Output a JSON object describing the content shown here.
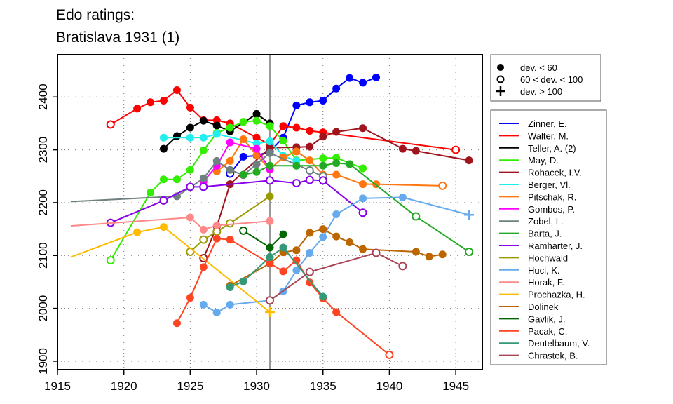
{
  "chart_data": {
    "type": "line",
    "title": [
      "Edo ratings:",
      "Bratislava 1931 (1)"
    ],
    "xlabel": "",
    "ylabel": "",
    "xlim": [
      1915,
      1947
    ],
    "ylim": [
      1884,
      2480
    ],
    "x_ticks": [
      1915,
      1920,
      1925,
      1930,
      1935,
      1940,
      1945
    ],
    "y_ticks": [
      1900,
      2000,
      2100,
      2200,
      2300,
      2400
    ],
    "grid": true,
    "reference_year": 1931,
    "marker_legend": [
      {
        "symbol": "filled",
        "label": "dev. < 60"
      },
      {
        "symbol": "open",
        "label": "60 < dev. < 100"
      },
      {
        "symbol": "plus",
        "label": "dev. > 100"
      }
    ],
    "legend_placement": "right",
    "series": [
      {
        "name": "Zinner, E.",
        "color": "#0000ff",
        "points": [
          [
            1928,
            2255,
            "o"
          ],
          [
            1929,
            2287,
            "f"
          ],
          [
            1930,
            2289,
            "f"
          ],
          [
            1931,
            2297,
            "f"
          ],
          [
            1932,
            2323,
            "f"
          ],
          [
            1933,
            2384,
            "f"
          ],
          [
            1934,
            2390,
            "f"
          ],
          [
            1935,
            2393,
            "f"
          ],
          [
            1936,
            2416,
            "f"
          ],
          [
            1937,
            2436,
            "f"
          ],
          [
            1938,
            2427,
            "f"
          ],
          [
            1939,
            2437,
            "f"
          ]
        ]
      },
      {
        "name": "Walter, M.",
        "color": "#ff0000",
        "points": [
          [
            1919,
            2348,
            "o"
          ],
          [
            1921,
            2378,
            "f"
          ],
          [
            1922,
            2390,
            "f"
          ],
          [
            1923,
            2393,
            "f"
          ],
          [
            1924,
            2413,
            "f"
          ],
          [
            1925,
            2380,
            "f"
          ],
          [
            1926,
            2356,
            "f"
          ],
          [
            1927,
            2356,
            "f"
          ],
          [
            1928,
            2350,
            "f"
          ],
          [
            1930,
            2323,
            "f"
          ],
          [
            1931,
            2310,
            "f"
          ],
          [
            1932,
            2345,
            "f"
          ],
          [
            1933,
            2342,
            "f"
          ],
          [
            1934,
            2336,
            "f"
          ],
          [
            1935,
            2333,
            "f"
          ],
          [
            1945,
            2300,
            "o"
          ]
        ]
      },
      {
        "name": "Teller, A. (2)",
        "color": "#000000",
        "points": [
          [
            1923,
            2302,
            "f"
          ],
          [
            1924,
            2326,
            "f"
          ],
          [
            1925,
            2342,
            "f"
          ],
          [
            1926,
            2355,
            "f"
          ],
          [
            1927,
            2346,
            "f"
          ],
          [
            1928,
            2335,
            "f"
          ],
          [
            1930,
            2368,
            "f"
          ],
          [
            1931,
            2350,
            "f"
          ]
        ]
      },
      {
        "name": "May, D.",
        "color": "#33ee00",
        "points": [
          [
            1919,
            2091,
            "o"
          ],
          [
            1922,
            2219,
            "f"
          ],
          [
            1923,
            2244,
            "f"
          ],
          [
            1924,
            2244,
            "f"
          ],
          [
            1925,
            2262,
            "f"
          ],
          [
            1926,
            2299,
            "f"
          ],
          [
            1927,
            2332,
            "f"
          ],
          [
            1928,
            2342,
            "f"
          ],
          [
            1929,
            2353,
            "f"
          ],
          [
            1930,
            2355,
            "f"
          ],
          [
            1931,
            2345,
            "f"
          ],
          [
            1932,
            2317,
            "f"
          ],
          [
            1933,
            2280,
            "f"
          ],
          [
            1935,
            2284,
            "f"
          ],
          [
            1936,
            2285,
            "f"
          ],
          [
            1938,
            2265,
            "f"
          ]
        ]
      },
      {
        "name": "Rohacek, I.V.",
        "color": "#a0141e",
        "points": [
          [
            1926,
            2095,
            "o"
          ],
          [
            1927,
            2155,
            "f"
          ],
          [
            1928,
            2235,
            "f"
          ],
          [
            1931,
            2304,
            "f"
          ],
          [
            1933,
            2305,
            "f"
          ],
          [
            1934,
            2306,
            "f"
          ],
          [
            1935,
            2325,
            "f"
          ],
          [
            1936,
            2334,
            "f"
          ],
          [
            1938,
            2341,
            "f"
          ],
          [
            1941,
            2302,
            "f"
          ],
          [
            1942,
            2298,
            "f"
          ],
          [
            1946,
            2280,
            "f"
          ]
        ]
      },
      {
        "name": "Berger, Vl.",
        "color": "#22eeee",
        "points": [
          [
            1923,
            2323,
            "f"
          ],
          [
            1925,
            2323,
            "f"
          ],
          [
            1926,
            2323,
            "f"
          ],
          [
            1927,
            2330,
            "f"
          ],
          [
            1930,
            2312,
            "f"
          ],
          [
            1931,
            2316,
            "f"
          ],
          [
            1932,
            2289,
            "f"
          ],
          [
            1933,
            2279,
            "f"
          ]
        ]
      },
      {
        "name": "Pitschak, R.",
        "color": "#ff7711",
        "points": [
          [
            1927,
            2259,
            "f"
          ],
          [
            1928,
            2279,
            "f"
          ],
          [
            1929,
            2320,
            "f"
          ],
          [
            1930,
            2290,
            "f"
          ],
          [
            1931,
            2263,
            "f"
          ],
          [
            1932,
            2286,
            "f"
          ],
          [
            1933,
            2297,
            "f"
          ],
          [
            1934,
            2280,
            "f"
          ],
          [
            1935,
            2253,
            "f"
          ],
          [
            1936,
            2253,
            "f"
          ],
          [
            1938,
            2235,
            "f"
          ],
          [
            1939,
            2235,
            "f"
          ],
          [
            1944,
            2232,
            "o"
          ]
        ]
      },
      {
        "name": "Gombos, P.",
        "color": "#ff00ff",
        "points": [
          [
            1926,
            2240,
            "f"
          ],
          [
            1927,
            2270,
            "f"
          ],
          [
            1928,
            2314,
            "f"
          ],
          [
            1930,
            2302,
            "f"
          ],
          [
            1931,
            2263,
            "f"
          ]
        ]
      },
      {
        "name": "Zobel, L.",
        "color": "#6e8080",
        "points": [
          [
            1916,
            2202,
            "n"
          ],
          [
            1924,
            2212,
            "f"
          ],
          [
            1926,
            2246,
            "f"
          ],
          [
            1927,
            2279,
            "f"
          ],
          [
            1928,
            2262,
            "f"
          ],
          [
            1929,
            2252,
            "f"
          ],
          [
            1930,
            2273,
            "f"
          ],
          [
            1931,
            2294,
            "f"
          ],
          [
            1934,
            2261,
            "o"
          ],
          [
            1935,
            2250,
            "o"
          ]
        ]
      },
      {
        "name": "Barta, J.",
        "color": "#22aa22",
        "points": [
          [
            1929,
            2253,
            "f"
          ],
          [
            1930,
            2258,
            "f"
          ],
          [
            1931,
            2270,
            "f"
          ],
          [
            1933,
            2270,
            "f"
          ],
          [
            1935,
            2270,
            "f"
          ],
          [
            1936,
            2275,
            "f"
          ],
          [
            1937,
            2273,
            "f"
          ],
          [
            1942,
            2174,
            "o"
          ],
          [
            1946,
            2107,
            "o"
          ]
        ]
      },
      {
        "name": "Ramharter, J.",
        "color": "#8800ee",
        "points": [
          [
            1919,
            2162,
            "o"
          ],
          [
            1923,
            2204,
            "o"
          ],
          [
            1925,
            2230,
            "o"
          ],
          [
            1926,
            2230,
            "o"
          ],
          [
            1931,
            2242,
            "o"
          ],
          [
            1933,
            2237,
            "o"
          ],
          [
            1934,
            2243,
            "o"
          ],
          [
            1935,
            2242,
            "o"
          ],
          [
            1938,
            2181,
            "o"
          ]
        ]
      },
      {
        "name": "Hochwald",
        "color": "#999900",
        "points": [
          [
            1925,
            2107,
            "o"
          ],
          [
            1926,
            2130,
            "o"
          ],
          [
            1927,
            2145,
            "o"
          ],
          [
            1928,
            2161,
            "o"
          ],
          [
            1931,
            2212,
            "f"
          ]
        ]
      },
      {
        "name": "Hucl, K.",
        "color": "#66aaee",
        "points": [
          [
            1926,
            2007,
            "f"
          ],
          [
            1927,
            1992,
            "f"
          ],
          [
            1928,
            2007,
            "f"
          ],
          [
            1931,
            2015,
            "f"
          ],
          [
            1932,
            2032,
            "f"
          ],
          [
            1933,
            2072,
            "f"
          ],
          [
            1934,
            2105,
            "f"
          ],
          [
            1935,
            2135,
            "f"
          ],
          [
            1936,
            2178,
            "f"
          ],
          [
            1938,
            2208,
            "f"
          ],
          [
            1941,
            2210,
            "f"
          ],
          [
            1946,
            2177,
            "p"
          ]
        ]
      },
      {
        "name": "Horak, F.",
        "color": "#ff8888",
        "points": [
          [
            1916,
            2156,
            "n"
          ],
          [
            1925,
            2172,
            "f"
          ],
          [
            1926,
            2149,
            "f"
          ],
          [
            1927,
            2157,
            "f"
          ],
          [
            1931,
            2165,
            "f"
          ]
        ]
      },
      {
        "name": "Prochazka, H.",
        "color": "#ffbb00",
        "points": [
          [
            1916,
            2097,
            "n"
          ],
          [
            1921,
            2144,
            "f"
          ],
          [
            1923,
            2154,
            "f"
          ],
          [
            1931,
            1993,
            "p"
          ]
        ]
      },
      {
        "name": "Dolinek",
        "color": "#bb6600",
        "points": [
          [
            1928,
            2043,
            "f"
          ],
          [
            1931,
            2085,
            "f"
          ],
          [
            1932,
            2106,
            "f"
          ],
          [
            1933,
            2110,
            "f"
          ],
          [
            1934,
            2143,
            "f"
          ],
          [
            1935,
            2150,
            "f"
          ],
          [
            1936,
            2136,
            "f"
          ],
          [
            1937,
            2125,
            "f"
          ],
          [
            1938,
            2112,
            "f"
          ],
          [
            1942,
            2107,
            "f"
          ],
          [
            1943,
            2098,
            "f"
          ],
          [
            1944,
            2102,
            "f"
          ]
        ]
      },
      {
        "name": "Gavlik, J.",
        "color": "#006600",
        "points": [
          [
            1929,
            2147,
            "o"
          ],
          [
            1931,
            2115,
            "f"
          ],
          [
            1932,
            2140,
            "f"
          ]
        ]
      },
      {
        "name": "Pacak, C.",
        "color": "#ff4422",
        "points": [
          [
            1924,
            1972,
            "f"
          ],
          [
            1925,
            2020,
            "f"
          ],
          [
            1926,
            2078,
            "f"
          ],
          [
            1927,
            2132,
            "f"
          ],
          [
            1928,
            2130,
            "f"
          ],
          [
            1931,
            2085,
            "f"
          ],
          [
            1932,
            2070,
            "f"
          ],
          [
            1933,
            2091,
            "f"
          ],
          [
            1934,
            2049,
            "f"
          ],
          [
            1935,
            2019,
            "f"
          ],
          [
            1936,
            1993,
            "f"
          ],
          [
            1940,
            1912,
            "o"
          ]
        ]
      },
      {
        "name": "Deutelbaum, V.",
        "color": "#339977",
        "points": [
          [
            1928,
            2040,
            "f"
          ],
          [
            1929,
            2051,
            "f"
          ],
          [
            1931,
            2097,
            "f"
          ],
          [
            1932,
            2115,
            "f"
          ],
          [
            1935,
            2022,
            "f"
          ]
        ]
      },
      {
        "name": "Chrastek, B.",
        "color": "#aa4455",
        "points": [
          [
            1931,
            2015,
            "o"
          ],
          [
            1934,
            2069,
            "o"
          ],
          [
            1939,
            2105,
            "o"
          ],
          [
            1941,
            2080,
            "o"
          ]
        ]
      }
    ]
  }
}
